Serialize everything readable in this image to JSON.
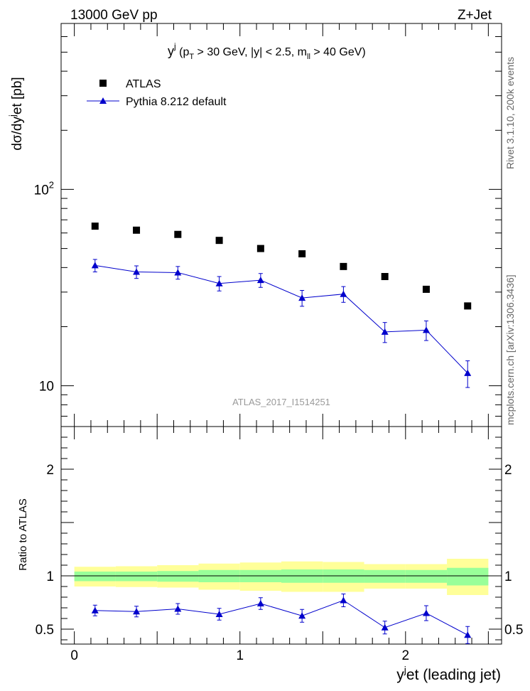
{
  "header": {
    "left": "13000 GeV pp",
    "right": "Z+Jet"
  },
  "side_labels": {
    "rivet": "Rivet 3.1.10,  200k events",
    "mcplots": "mcplots.cern.ch [arXiv:1306.3436]"
  },
  "watermark": "ATLAS_2017_I1514251",
  "colors": {
    "atlas": "#000000",
    "pythia": "#0000cc",
    "band_inner": "#99ff99",
    "band_outer": "#ffff99"
  },
  "chart_data": [
    {
      "type": "scatter",
      "panel": "main",
      "title": "y^j (p_T > 30 GeV, |y| < 2.5, m_ll > 40 GeV)",
      "title_parts": {
        "y": "y",
        "j": "j",
        "pre_pt": " (p",
        "T": "T",
        "rest1": " > 30 GeV, |y| < 2.5, m",
        "ll": "ll",
        "rest2": " > 40 GeV)"
      },
      "ylabel": "dσ/dy^jet [pb]",
      "ylabel_parts": {
        "a": "dσ/dy",
        "sup": "j",
        "b": "et [pb]"
      },
      "yscale": "log",
      "ylim": [
        6.2,
        700
      ],
      "xlim": [
        -0.08,
        2.58
      ],
      "ytick_labels": [
        {
          "base": "10",
          "exp": "2"
        },
        {
          "base": "10",
          "exp": ""
        }
      ],
      "legend_position": "top-left",
      "x": [
        0.125,
        0.375,
        0.625,
        0.875,
        1.125,
        1.375,
        1.625,
        1.875,
        2.125,
        2.375
      ],
      "series": [
        {
          "name": "ATLAS",
          "marker": "square",
          "values": [
            65,
            62,
            59,
            55,
            50,
            47,
            40.5,
            36,
            31,
            25.5
          ]
        },
        {
          "name": "Pythia 8.212 default",
          "marker": "triangle",
          "values": [
            41,
            38,
            37.7,
            33.2,
            34.5,
            28,
            29.3,
            18.8,
            19.2,
            11.6
          ],
          "errors": [
            3.0,
            2.8,
            2.8,
            2.8,
            2.8,
            2.6,
            2.7,
            2.2,
            2.2,
            1.8
          ]
        }
      ]
    },
    {
      "type": "line",
      "panel": "ratio",
      "ylabel": "Ratio to ATLAS",
      "xlabel": "y^jet (leading jet)",
      "xlabel_parts": {
        "a": "y",
        "sup": "j",
        "b": "et (leading jet)"
      },
      "ylim": [
        0.36,
        2.4
      ],
      "xlim": [
        -0.08,
        2.58
      ],
      "yticks": [
        0.5,
        1,
        2
      ],
      "ytick_labels": [
        "0.5",
        "1",
        "2"
      ],
      "xticks": [
        0,
        1,
        2
      ],
      "xtick_labels": [
        "0",
        "1",
        "2"
      ],
      "x": [
        0.125,
        0.375,
        0.625,
        0.875,
        1.125,
        1.375,
        1.625,
        1.875,
        2.125,
        2.375
      ],
      "values": [
        0.675,
        0.665,
        0.69,
        0.64,
        0.74,
        0.625,
        0.77,
        0.515,
        0.65,
        0.445
      ],
      "errors": [
        0.05,
        0.05,
        0.05,
        0.055,
        0.055,
        0.06,
        0.06,
        0.06,
        0.07,
        0.08
      ],
      "band_edges": [
        0,
        0.25,
        0.5,
        0.75,
        1.0,
        1.25,
        1.5,
        1.75,
        2.0,
        2.25,
        2.5
      ],
      "band_inner": [
        [
          0.95,
          1.04
        ],
        [
          0.95,
          1.04
        ],
        [
          0.945,
          1.045
        ],
        [
          0.94,
          1.055
        ],
        [
          0.94,
          1.055
        ],
        [
          0.935,
          1.06
        ],
        [
          0.935,
          1.06
        ],
        [
          0.935,
          1.055
        ],
        [
          0.935,
          1.055
        ],
        [
          0.91,
          1.075
        ]
      ],
      "band_outer": [
        [
          0.9,
          1.085
        ],
        [
          0.895,
          1.09
        ],
        [
          0.89,
          1.1
        ],
        [
          0.87,
          1.115
        ],
        [
          0.86,
          1.125
        ],
        [
          0.85,
          1.135
        ],
        [
          0.85,
          1.13
        ],
        [
          0.88,
          1.11
        ],
        [
          0.88,
          1.11
        ],
        [
          0.82,
          1.16
        ]
      ]
    }
  ]
}
